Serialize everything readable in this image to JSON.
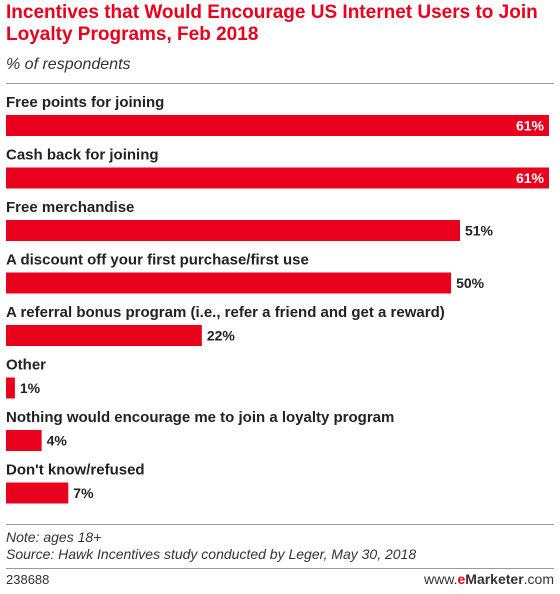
{
  "title": "Incentives that Would Encourage US Internet Users to Join Loyalty Programs, Feb 2018",
  "subtitle": "% of respondents",
  "note": "Note: ages 18+",
  "source": "Source: Hawk Incentives study conducted by Leger, May 30, 2018",
  "chart_id": "238688",
  "brand": {
    "prefix": "www.",
    "e": "e",
    "name": "Marketer",
    "suffix": ".com"
  },
  "colors": {
    "bar": "#e8001c",
    "title": "#e8001c",
    "value_inside": "#ffffff",
    "value_outside": "#222222"
  },
  "chart_data": {
    "type": "bar",
    "orientation": "horizontal",
    "title": "Incentives that Would Encourage US Internet Users to Join Loyalty Programs, Feb 2018",
    "subtitle": "% of respondents",
    "categories": [
      "Free points for joining",
      "Cash back for joining",
      "Free merchandise",
      "A discount off your first purchase/first use",
      "A referral bonus program (i.e., refer a friend and get a reward)",
      "Other",
      "Nothing would encourage me to join a loyalty program",
      "Don't know/refused"
    ],
    "values": [
      61,
      61,
      51,
      50,
      22,
      1,
      4,
      7
    ],
    "value_labels": [
      "61%",
      "61%",
      "51%",
      "50%",
      "22%",
      "1%",
      "4%",
      "7%"
    ],
    "unit": "%",
    "xlim": [
      0,
      61
    ],
    "grid": false,
    "legend": "none"
  }
}
